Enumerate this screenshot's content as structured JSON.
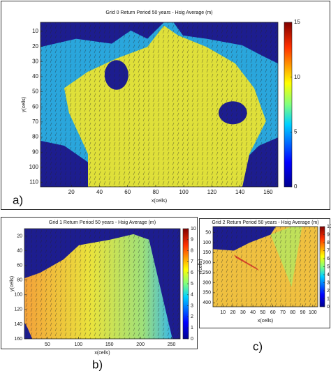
{
  "chart_data": [
    {
      "type": "heatmap",
      "title": "Grid 0 Return Period 50 years - Hsig Average (m)",
      "xlabel": "x(cells)",
      "ylabel": "y(cells)",
      "xlim": [
        -2,
        167
      ],
      "ylim": [
        4,
        113
      ],
      "y_inverted": true,
      "xticks": [
        20,
        40,
        60,
        80,
        100,
        120,
        140,
        160
      ],
      "yticks": [
        10,
        20,
        30,
        40,
        50,
        60,
        70,
        80,
        90,
        100,
        110
      ],
      "colorbar": {
        "lim": [
          0,
          15
        ],
        "ticks": [
          0,
          5,
          10,
          15
        ]
      },
      "panel_label": "a)"
    },
    {
      "type": "heatmap",
      "title": "Grid 1 Return Period 50 years - Hsig Average (m)",
      "xlabel": "x(cells)",
      "ylabel": "y(cells)",
      "xlim": [
        13,
        264
      ],
      "ylim": [
        10,
        160
      ],
      "y_inverted": true,
      "xticks": [
        50,
        100,
        150,
        200,
        250
      ],
      "yticks": [
        20,
        40,
        60,
        80,
        100,
        120,
        140,
        160
      ],
      "colorbar": {
        "lim": [
          0,
          10
        ],
        "ticks": [
          0,
          1,
          2,
          3,
          4,
          5,
          6,
          7,
          8,
          9,
          10
        ]
      },
      "panel_label": "b)"
    },
    {
      "type": "heatmap",
      "title": "Grid 2 Return Period 50 years - Hsig Average (m)",
      "xlabel": "x(cells)",
      "ylabel": "y(cells)",
      "xlim": [
        0,
        105
      ],
      "ylim": [
        20,
        420
      ],
      "y_inverted": true,
      "xticks": [
        10,
        20,
        30,
        40,
        50,
        60,
        70,
        80,
        90,
        100
      ],
      "yticks": [
        50,
        100,
        150,
        200,
        250,
        300,
        350,
        400
      ],
      "colorbar": {
        "lim": [
          0,
          10
        ],
        "ticks": [
          0,
          1,
          2,
          3,
          4,
          5,
          6,
          7,
          8,
          9,
          10
        ]
      },
      "panel_label": "c)"
    }
  ]
}
